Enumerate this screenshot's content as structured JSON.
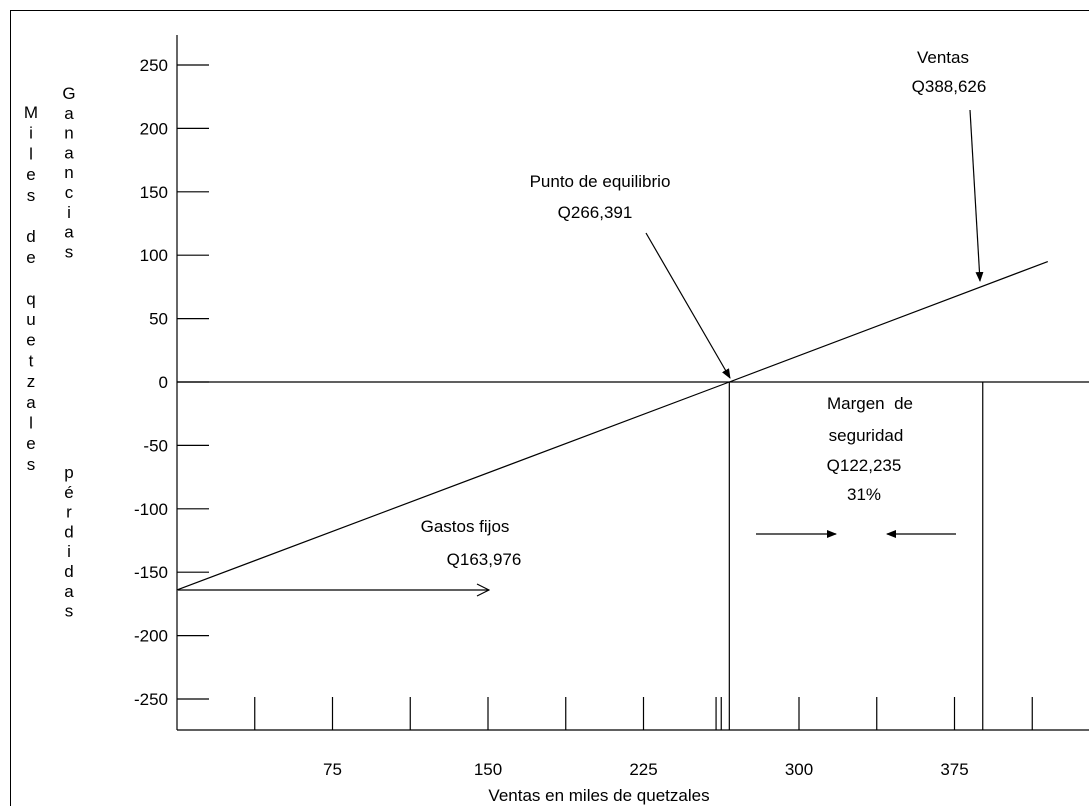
{
  "chart_data": {
    "type": "line",
    "title": "",
    "xlabel": "Ventas en miles de quetzales",
    "ylabel_outer": "Miles de quetzales",
    "ylabel_upper": "Ganancias",
    "ylabel_lower": "pérdidas",
    "ylim": [
      -250,
      250
    ],
    "xlim": [
      0,
      430
    ],
    "x_ticks_labeled": [
      75,
      150,
      225,
      300,
      375
    ],
    "x_tick_labels": [
      "75",
      "150",
      "225",
      "300",
      "375"
    ],
    "x_minor_ticks": [
      37.5,
      75,
      112.5,
      150,
      187.5,
      225,
      262.5,
      300,
      337.5,
      375,
      412.5
    ],
    "y_ticks": [
      250,
      200,
      150,
      100,
      50,
      0,
      -50,
      -100,
      -150,
      -200,
      -250
    ],
    "y_tick_labels": [
      "250",
      "200",
      "150",
      "100",
      "50",
      "0",
      "-50",
      "-100",
      "-150",
      "-200",
      "-250"
    ],
    "grid": false,
    "series": [
      {
        "x": [
          0,
          266.391,
          420
        ],
        "y": [
          -163.976,
          0,
          95
        ]
      }
    ],
    "vertical_markers": [
      266.391,
      388.626
    ],
    "annotations": {
      "breakeven_line1": "Punto de equilibrio",
      "breakeven_line2": "Q266,391",
      "sales_line1": "Ventas",
      "sales_line2": "Q388,626",
      "fixed_line1": "Gastos fijos",
      "fixed_line2": "Q163,976",
      "margin_line1": "Margen  de",
      "margin_line2": "seguridad",
      "margin_line3": "Q122,235",
      "margin_line4": "31%"
    }
  }
}
